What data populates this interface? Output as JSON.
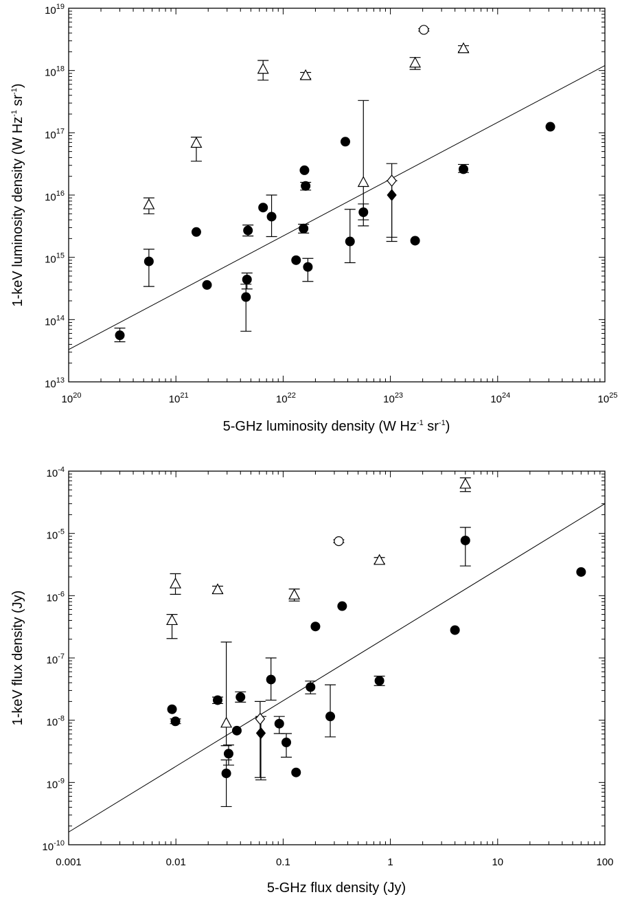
{
  "chart_data": [
    {
      "type": "scatter",
      "title": "",
      "xlabel": "5-GHz luminosity density (W Hz",
      "ylabel": "1-keV luminosity density (W Hz",
      "unit_suffix": {
        "hz_exp": "-1",
        "sr_text": " sr",
        "sr_exp": "-1",
        "close": ")"
      },
      "xscale": "log",
      "yscale": "log",
      "xlim": [
        1e+20,
        1e+25
      ],
      "ylim": [
        10000000000000.0,
        1e+19
      ],
      "x_ticks": [
        {
          "base": "10",
          "exp": "20"
        },
        {
          "base": "10",
          "exp": "21"
        },
        {
          "base": "10",
          "exp": "22"
        },
        {
          "base": "10",
          "exp": "23"
        },
        {
          "base": "10",
          "exp": "24"
        },
        {
          "base": "10",
          "exp": "25"
        }
      ],
      "y_ticks": [
        {
          "base": "10",
          "exp": "13"
        },
        {
          "base": "10",
          "exp": "14"
        },
        {
          "base": "10",
          "exp": "15"
        },
        {
          "base": "10",
          "exp": "16"
        },
        {
          "base": "10",
          "exp": "17"
        },
        {
          "base": "10",
          "exp": "18"
        },
        {
          "base": "10",
          "exp": "19"
        }
      ],
      "fit_line": {
        "x": [
          1e+20,
          1e+25
        ],
        "y": [
          33000000000000.0,
          1.2e+18
        ]
      },
      "series": [
        {
          "marker": "filled-circle",
          "points": [
            {
              "x": 3e+20,
              "y": 56000000000000.0,
              "err": [
                44000000000000.0,
                73000000000000.0
              ]
            },
            {
              "x": 5.6e+20,
              "y": 860000000000000.0,
              "err": [
                340000000000000.0,
                1350000000000000.0
              ]
            },
            {
              "x": 1.55e+21,
              "y": 2550000000000000.0
            },
            {
              "x": 1.95e+21,
              "y": 360000000000000.0
            },
            {
              "x": 4.5e+21,
              "y": 230000000000000.0,
              "err": [
                65000000000000.0,
                370000000000000.0
              ]
            },
            {
              "x": 4.6e+21,
              "y": 440000000000000.0,
              "err": [
                310000000000000.0,
                560000000000000.0
              ]
            },
            {
              "x": 4.7e+21,
              "y": 2700000000000000.0,
              "err": [
                2200000000000000.0,
                3300000000000000.0
              ]
            },
            {
              "x": 6.5e+21,
              "y": 6300000000000000.0
            },
            {
              "x": 7.8e+21,
              "y": 4500000000000000.0,
              "err": [
                2150000000000000.0,
                1e+16
              ]
            },
            {
              "x": 1.32e+22,
              "y": 900000000000000.0
            },
            {
              "x": 1.55e+22,
              "y": 2900000000000000.0,
              "err": [
                2450000000000000.0,
                3400000000000000.0
              ]
            },
            {
              "x": 1.58e+22,
              "y": 2.5e+16
            },
            {
              "x": 1.62e+22,
              "y": 1.4e+16,
              "err": [
                1.2e+16,
                1.6e+16
              ]
            },
            {
              "x": 1.7e+22,
              "y": 700000000000000.0,
              "err": [
                410000000000000.0,
                960000000000000.0
              ]
            },
            {
              "x": 3.8e+22,
              "y": 7.2e+16
            },
            {
              "x": 4.2e+22,
              "y": 1800000000000000.0,
              "err": [
                820000000000000.0,
                5900000000000000.0
              ]
            },
            {
              "x": 5.6e+22,
              "y": 5300000000000000.0,
              "err": [
                4000000000000000.0,
                7200000000000000.0
              ]
            },
            {
              "x": 1.7e+23,
              "y": 1850000000000000.0
            },
            {
              "x": 4.8e+23,
              "y": 2.6e+16,
              "err": [
                2.3e+16,
                3.1e+16
              ]
            },
            {
              "x": 3.1e+24,
              "y": 1.25e+17
            }
          ]
        },
        {
          "marker": "open-triangle",
          "points": [
            {
              "x": 5.6e+20,
              "y": 7000000000000000.0,
              "err": [
                5000000000000000.0,
                9000000000000000.0
              ]
            },
            {
              "x": 1.55e+21,
              "y": 6.8e+16,
              "err": [
                3.5e+16,
                8.5e+16
              ]
            },
            {
              "x": 6.5e+21,
              "y": 1.05e+18,
              "err": [
                7e+17,
                1.45e+18
              ]
            },
            {
              "x": 1.62e+22,
              "y": 8.3e+17,
              "err": [
                7.4e+17,
                9.3e+17
              ]
            },
            {
              "x": 5.6e+22,
              "y": 1.6e+16,
              "err": [
                3200000000000000.0,
                3.3e+17
              ]
            },
            {
              "x": 1.7e+23,
              "y": 1.32e+18,
              "err": [
                1.04e+18,
                1.62e+18
              ]
            },
            {
              "x": 4.8e+23,
              "y": 2.25e+18,
              "err": [
                2e+18,
                2.5e+18
              ]
            }
          ]
        },
        {
          "marker": "open-circle",
          "points": [
            {
              "x": 2.05e+23,
              "y": 4.5e+18,
              "err": [
                4.3e+18,
                4.7e+18
              ]
            }
          ]
        },
        {
          "marker": "open-diamond",
          "points": [
            {
              "x": 1.03e+23,
              "y": 1.7e+16,
              "err": [
                2100000000000000.0,
                3.2e+16
              ]
            }
          ]
        },
        {
          "marker": "filled-diamond",
          "points": [
            {
              "x": 1.03e+23,
              "y": 1e+16,
              "err": [
                1800000000000000.0,
                1.7e+16
              ]
            }
          ]
        }
      ]
    },
    {
      "type": "scatter",
      "title": "",
      "xlabel": "5-GHz flux density (Jy)",
      "ylabel": "1-keV flux density (Jy)",
      "xscale": "log",
      "yscale": "log",
      "xlim": [
        0.001,
        100
      ],
      "ylim": [
        1e-10,
        0.0001
      ],
      "x_ticks": [
        {
          "text": "0.001"
        },
        {
          "text": "0.01"
        },
        {
          "text": "0.1"
        },
        {
          "text": "1"
        },
        {
          "text": "10"
        },
        {
          "text": "100"
        }
      ],
      "y_ticks": [
        {
          "base": "10",
          "exp": "-10"
        },
        {
          "base": "10",
          "exp": "-9"
        },
        {
          "base": "10",
          "exp": "-8"
        },
        {
          "base": "10",
          "exp": "-7"
        },
        {
          "base": "10",
          "exp": "-6"
        },
        {
          "base": "10",
          "exp": "-5"
        },
        {
          "base": "10",
          "exp": "-4"
        }
      ],
      "fit_line": {
        "x": [
          0.001,
          100
        ],
        "y": [
          1.6e-10,
          3e-05
        ]
      },
      "series": [
        {
          "marker": "filled-circle",
          "points": [
            {
              "x": 0.0092,
              "y": 1.5e-08
            },
            {
              "x": 0.0099,
              "y": 9.6e-09,
              "err": [
                8.8e-09,
                1.05e-08
              ]
            },
            {
              "x": 0.0245,
              "y": 2.1e-08,
              "err": [
                1.85e-08,
                2.35e-08
              ]
            },
            {
              "x": 0.0295,
              "y": 1.4e-09,
              "err": [
                4.1e-10,
                2.3e-09
              ]
            },
            {
              "x": 0.031,
              "y": 2.9e-09,
              "err": [
                1.9e-09,
                4e-09
              ]
            },
            {
              "x": 0.037,
              "y": 6.8e-09
            },
            {
              "x": 0.04,
              "y": 2.35e-08,
              "err": [
                1.95e-08,
                2.85e-08
              ]
            },
            {
              "x": 0.077,
              "y": 4.5e-08,
              "err": [
                2.1e-08,
                1e-07
              ]
            },
            {
              "x": 0.092,
              "y": 8.8e-09,
              "err": [
                6.1e-09,
                1.15e-08
              ]
            },
            {
              "x": 0.107,
              "y": 4.4e-09,
              "err": [
                2.55e-09,
                6.1e-09
              ]
            },
            {
              "x": 0.132,
              "y": 1.45e-09
            },
            {
              "x": 0.18,
              "y": 3.4e-08,
              "err": [
                2.65e-08,
                4.25e-08
              ]
            },
            {
              "x": 0.2,
              "y": 3.2e-07
            },
            {
              "x": 0.275,
              "y": 1.15e-08,
              "err": [
                5.4e-09,
                3.7e-08
              ]
            },
            {
              "x": 0.355,
              "y": 6.8e-07
            },
            {
              "x": 0.79,
              "y": 4.3e-08,
              "err": [
                3.6e-08,
                5.1e-08
              ]
            },
            {
              "x": 4.0,
              "y": 2.8e-07
            },
            {
              "x": 5.0,
              "y": 7.7e-06,
              "err": [
                3e-06,
                1.25e-05
              ]
            },
            {
              "x": 60.0,
              "y": 2.4e-06
            }
          ]
        },
        {
          "marker": "open-triangle",
          "points": [
            {
              "x": 0.0092,
              "y": 4e-07,
              "err": [
                2.05e-07,
                5e-07
              ]
            },
            {
              "x": 0.0099,
              "y": 1.55e-06,
              "err": [
                1.05e-06,
                2.25e-06
              ]
            },
            {
              "x": 0.0245,
              "y": 1.25e-06,
              "err": [
                1.1e-06,
                1.42e-06
              ]
            },
            {
              "x": 0.0295,
              "y": 9e-09,
              "err": [
                3.9e-09,
                1.8e-07
              ]
            },
            {
              "x": 0.127,
              "y": 1.03e-06,
              "err": [
                8.2e-07,
                1.28e-06
              ]
            },
            {
              "x": 0.79,
              "y": 3.7e-06,
              "err": [
                3.3e-06,
                4.1e-06
              ]
            },
            {
              "x": 5.0,
              "y": 6.2e-05,
              "err": [
                4.7e-05,
                7.8e-05
              ]
            }
          ]
        },
        {
          "marker": "open-circle",
          "points": [
            {
              "x": 0.33,
              "y": 7.5e-06,
              "err": [
                7.1e-06,
                7.9e-06
              ]
            }
          ]
        },
        {
          "marker": "open-diamond",
          "points": [
            {
              "x": 0.061,
              "y": 1.05e-08,
              "err": [
                1.2e-09,
                2e-08
              ]
            }
          ]
        },
        {
          "marker": "filled-diamond",
          "points": [
            {
              "x": 0.062,
              "y": 6.2e-09,
              "err": [
                1.1e-09,
                1.15e-08
              ]
            }
          ]
        }
      ]
    }
  ]
}
